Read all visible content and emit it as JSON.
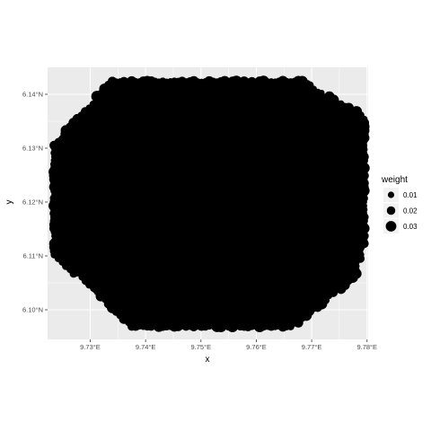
{
  "chart_data": {
    "type": "scatter",
    "title": "",
    "xlabel": "x",
    "ylabel": "y",
    "xlim": [
      9.7223,
      9.7802
    ],
    "ylim": [
      6.0945,
      6.145
    ],
    "x_ticks": [
      {
        "value": 9.73,
        "label": "9.73°E"
      },
      {
        "value": 9.74,
        "label": "9.74°E"
      },
      {
        "value": 9.75,
        "label": "9.75°E"
      },
      {
        "value": 9.76,
        "label": "9.76°E"
      },
      {
        "value": 9.77,
        "label": "9.77°E"
      },
      {
        "value": 9.78,
        "label": "9.78°E"
      }
    ],
    "y_ticks": [
      {
        "value": 6.1,
        "label": "6.10°N"
      },
      {
        "value": 6.11,
        "label": "6.11°N"
      },
      {
        "value": 6.12,
        "label": "6.12°N"
      },
      {
        "value": 6.13,
        "label": "6.13°N"
      },
      {
        "value": 6.14,
        "label": "6.14°N"
      }
    ],
    "grid": true,
    "point_color": "#000000",
    "panel_background": "#ebebeb",
    "grid_color": "#ffffff",
    "point_grid": {
      "x_start": 9.7235,
      "x_end": 9.7795,
      "x_step": 0.0007,
      "y_start": 6.0962,
      "y_end": 6.1428,
      "y_step": 0.0007
    },
    "region_polygon": [
      [
        9.7235,
        6.131
      ],
      [
        9.734,
        6.1428
      ],
      [
        9.768,
        6.1428
      ],
      [
        9.7795,
        6.136
      ],
      [
        9.7795,
        6.112
      ],
      [
        9.778,
        6.106
      ],
      [
        9.766,
        6.0962
      ],
      [
        9.738,
        6.0962
      ],
      [
        9.7235,
        6.11
      ]
    ],
    "weight_range": [
      0.005,
      0.035
    ],
    "legend": {
      "title": "weight",
      "placement": "right",
      "entries": [
        {
          "label": "0.01",
          "value": 0.01
        },
        {
          "label": "0.02",
          "value": 0.02
        },
        {
          "label": "0.03",
          "value": 0.03
        }
      ]
    }
  }
}
